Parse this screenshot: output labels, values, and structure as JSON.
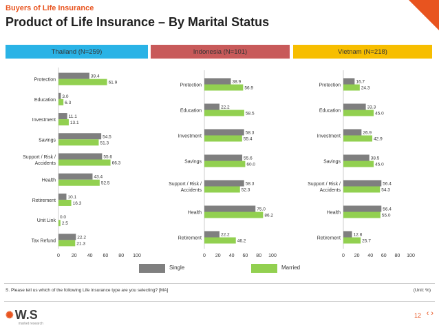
{
  "header": {
    "supertitle": "Buyers of Life Insurance",
    "title": "Product of Life Insurance – By Marital Status"
  },
  "bands": [
    {
      "label": "Thailand (N=259)",
      "color": "#2ab3e6"
    },
    {
      "label": "Indonesia (N=101)",
      "color": "#c85a5a"
    },
    {
      "label": "Vietnam (N=218)",
      "color": "#f7be00"
    }
  ],
  "legend": {
    "single": "Single",
    "married": "Married"
  },
  "colors": {
    "single": "#7f7f7f",
    "married": "#92d050",
    "accent": "#e8541f"
  },
  "footnote": "S. Please tell us which of the following Life insurance type are you selecting? [MA]",
  "unit": "(Unit: %)",
  "logo": {
    "text": "W.S",
    "sub": "market research"
  },
  "page": "12",
  "chart_data": [
    {
      "type": "bar",
      "orientation": "horizontal",
      "categories": [
        "Protection",
        "Education",
        "Investment",
        "Savings",
        "Support / Risk / Accidents",
        "Health",
        "Retirement",
        "Unit Link",
        "Tax Refund"
      ],
      "series": [
        {
          "name": "Single",
          "values": [
            39.4,
            3.0,
            11.1,
            54.5,
            55.6,
            43.4,
            10.1,
            0.0,
            22.2
          ]
        },
        {
          "name": "Married",
          "values": [
            61.9,
            6.3,
            13.1,
            51.3,
            66.3,
            52.5,
            16.3,
            2.5,
            21.3
          ]
        }
      ],
      "xlim": [
        0,
        100
      ],
      "xticks": [
        0,
        20,
        40,
        60,
        80,
        100
      ]
    },
    {
      "type": "bar",
      "orientation": "horizontal",
      "categories": [
        "Protection",
        "Education",
        "Investment",
        "Savings",
        "Support / Risk / Accidents",
        "Health",
        "Retirement"
      ],
      "series": [
        {
          "name": "Single",
          "values": [
            38.9,
            22.2,
            58.3,
            55.6,
            58.3,
            75.0,
            22.2
          ]
        },
        {
          "name": "Married",
          "values": [
            56.9,
            58.5,
            55.4,
            60.0,
            52.3,
            86.2,
            46.2
          ]
        }
      ],
      "xlim": [
        0,
        100
      ],
      "xticks": [
        0,
        20,
        40,
        60,
        80,
        100
      ]
    },
    {
      "type": "bar",
      "orientation": "horizontal",
      "categories": [
        "Protection",
        "Education",
        "Investment",
        "Savings",
        "Support / Risk / Accidents",
        "Health",
        "Retirement"
      ],
      "series": [
        {
          "name": "Single",
          "values": [
            16.7,
            33.3,
            26.9,
            38.5,
            56.4,
            56.4,
            12.8
          ]
        },
        {
          "name": "Married",
          "values": [
            24.3,
            45.0,
            42.9,
            45.0,
            54.3,
            55.0,
            25.7
          ]
        }
      ],
      "xlim": [
        0,
        100
      ],
      "xticks": [
        0,
        20,
        40,
        60,
        80,
        100
      ]
    }
  ]
}
